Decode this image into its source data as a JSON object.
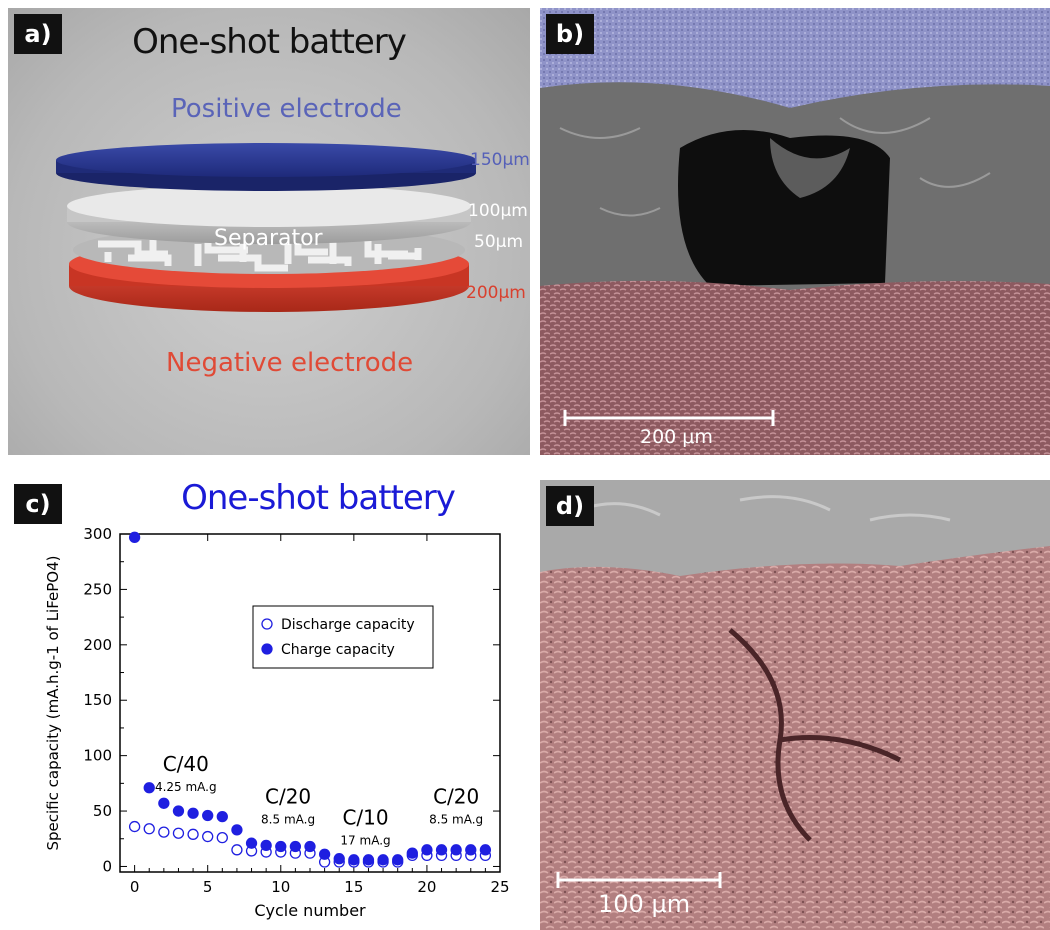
{
  "panel_a": {
    "tag": "a)",
    "title": "One-shot battery",
    "positive_label": "Positive electrode",
    "negative_label": "Negative electrode",
    "separator_label": "Separator",
    "thickness": {
      "positive": "150μm",
      "separator_disk": "100μm",
      "separator_grid": "50μm",
      "negative": "200μm"
    }
  },
  "panel_b": {
    "tag": "b)",
    "scale_label": "200 μm"
  },
  "panel_c": {
    "tag": "c)"
  },
  "panel_d": {
    "tag": "d)",
    "scale_label": "100 μm"
  },
  "chart_data": {
    "type": "scatter",
    "title": "One-shot battery",
    "xlabel": "Cycle number",
    "ylabel": "Specific capacity (mA.h.g-1 of LiFePO4)",
    "xlim": [
      -1,
      25
    ],
    "ylim": [
      -5,
      300
    ],
    "xticks": [
      0,
      5,
      10,
      15,
      20,
      25
    ],
    "yticks": [
      0,
      50,
      100,
      150,
      200,
      250,
      300
    ],
    "legend_position": "upper-middle",
    "series": [
      {
        "name": "Discharge capacity",
        "marker": "open-circle",
        "color": "#1f1fe0",
        "x": [
          0,
          1,
          2,
          3,
          4,
          5,
          6,
          7,
          8,
          9,
          10,
          11,
          12,
          13,
          14,
          15,
          16,
          17,
          18,
          19,
          20,
          21,
          22,
          23,
          24
        ],
        "y": [
          36,
          34,
          31,
          30,
          29,
          27,
          26,
          15,
          14,
          13,
          13,
          12,
          12,
          4,
          4,
          4,
          4,
          4,
          4,
          10,
          10,
          10,
          10,
          10,
          10
        ]
      },
      {
        "name": "Charge capacity",
        "marker": "filled-circle",
        "color": "#1f1fe0",
        "x": [
          0,
          1,
          2,
          3,
          4,
          5,
          6,
          7,
          8,
          9,
          10,
          11,
          12,
          13,
          14,
          15,
          16,
          17,
          18,
          19,
          20,
          21,
          22,
          23,
          24
        ],
        "y": [
          297,
          71,
          57,
          50,
          48,
          46,
          45,
          33,
          21,
          19,
          18,
          18,
          18,
          11,
          7,
          6,
          6,
          6,
          6,
          12,
          15,
          15,
          15,
          15,
          15
        ]
      }
    ],
    "annotations": [
      {
        "rate": "C/40",
        "current": "4.25 mA.g",
        "x": 3.5,
        "y": 86
      },
      {
        "rate": "C/20",
        "current": "8.5 mA.g",
        "x": 10.5,
        "y": 57
      },
      {
        "rate": "C/10",
        "current": "17 mA.g",
        "x": 15.8,
        "y": 38
      },
      {
        "rate": "C/20",
        "current": "8.5 mA.g",
        "x": 22.0,
        "y": 57
      }
    ]
  }
}
